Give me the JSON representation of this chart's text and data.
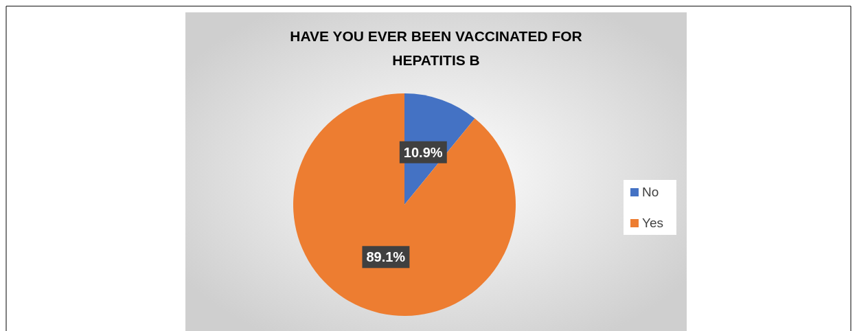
{
  "chart_data": {
    "type": "pie",
    "title": "HAVE YOU EVER BEEN VACCINATED FOR HEPATITIS B",
    "categories": [
      "No",
      "Yes"
    ],
    "values": [
      10.9,
      89.1
    ],
    "colors": [
      "#4472c4",
      "#ed7d31"
    ],
    "value_labels": [
      "10.9%",
      "89.1%"
    ],
    "legend": "right"
  }
}
